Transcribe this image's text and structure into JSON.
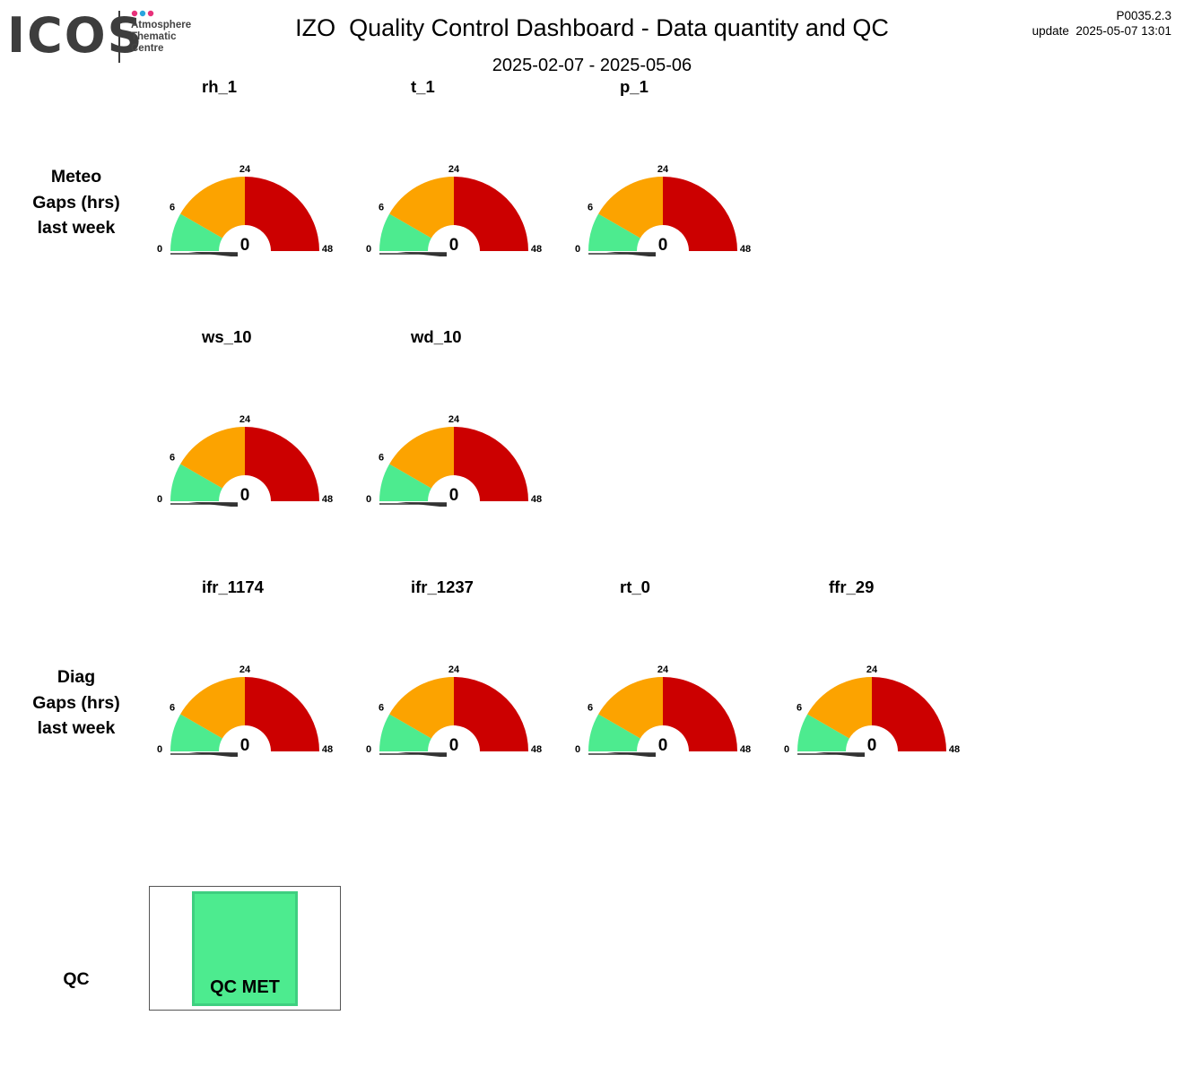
{
  "header": {
    "logo_text": "ICOS",
    "logo_sub": [
      "Atmosphere",
      "Thematic",
      "Centre"
    ],
    "logo_dot_colors": [
      "#e8317a",
      "#2aa6de",
      "#e8317a"
    ],
    "title": "IZO  Quality Control Dashboard - Data quantity and QC",
    "period": "2025-02-07 - 2025-05-06",
    "version": "P0035.2.3",
    "update": "update  2025-05-07 13:01"
  },
  "rows": {
    "meteo_label": [
      "Meteo",
      "Gaps (hrs)",
      "last week"
    ],
    "diag_label": [
      "Diag",
      "Gaps (hrs)",
      "last week"
    ],
    "qc_label": "QC"
  },
  "colors": {
    "green": "#4deb8f",
    "orange": "#fca300",
    "red": "#cc0000",
    "needle": "#333333",
    "qc_fill": "#4deb8f"
  },
  "qc": {
    "status": "QC MET"
  },
  "chart_data": [
    {
      "type": "gauge",
      "title": "rh_1",
      "value": 0,
      "value_label": "0",
      "range": [
        0,
        48
      ],
      "ticks": [
        "0",
        "6",
        "24",
        "48"
      ],
      "bands": [
        {
          "from": 0,
          "to": 6,
          "color": "green"
        },
        {
          "from": 6,
          "to": 24,
          "color": "orange"
        },
        {
          "from": 24,
          "to": 48,
          "color": "red"
        }
      ]
    },
    {
      "type": "gauge",
      "title": "t_1",
      "value": 0,
      "value_label": "0",
      "range": [
        0,
        48
      ],
      "ticks": [
        "0",
        "6",
        "24",
        "48"
      ],
      "bands": [
        {
          "from": 0,
          "to": 6,
          "color": "green"
        },
        {
          "from": 6,
          "to": 24,
          "color": "orange"
        },
        {
          "from": 24,
          "to": 48,
          "color": "red"
        }
      ]
    },
    {
      "type": "gauge",
      "title": "p_1",
      "value": 0,
      "value_label": "0",
      "range": [
        0,
        48
      ],
      "ticks": [
        "0",
        "6",
        "24",
        "48"
      ],
      "bands": [
        {
          "from": 0,
          "to": 6,
          "color": "green"
        },
        {
          "from": 6,
          "to": 24,
          "color": "orange"
        },
        {
          "from": 24,
          "to": 48,
          "color": "red"
        }
      ]
    },
    {
      "type": "gauge",
      "title": "ws_10",
      "value": 0,
      "value_label": "0",
      "range": [
        0,
        48
      ],
      "ticks": [
        "0",
        "6",
        "24",
        "48"
      ],
      "bands": [
        {
          "from": 0,
          "to": 6,
          "color": "green"
        },
        {
          "from": 6,
          "to": 24,
          "color": "orange"
        },
        {
          "from": 24,
          "to": 48,
          "color": "red"
        }
      ]
    },
    {
      "type": "gauge",
      "title": "wd_10",
      "value": 0,
      "value_label": "0",
      "range": [
        0,
        48
      ],
      "ticks": [
        "0",
        "6",
        "24",
        "48"
      ],
      "bands": [
        {
          "from": 0,
          "to": 6,
          "color": "green"
        },
        {
          "from": 6,
          "to": 24,
          "color": "orange"
        },
        {
          "from": 24,
          "to": 48,
          "color": "red"
        }
      ]
    },
    {
      "type": "gauge",
      "title": "ifr_1174",
      "value": 0,
      "value_label": "0",
      "range": [
        0,
        48
      ],
      "ticks": [
        "0",
        "6",
        "24",
        "48"
      ],
      "bands": [
        {
          "from": 0,
          "to": 6,
          "color": "green"
        },
        {
          "from": 6,
          "to": 24,
          "color": "orange"
        },
        {
          "from": 24,
          "to": 48,
          "color": "red"
        }
      ]
    },
    {
      "type": "gauge",
      "title": "ifr_1237",
      "value": 0,
      "value_label": "0",
      "range": [
        0,
        48
      ],
      "ticks": [
        "0",
        "6",
        "24",
        "48"
      ],
      "bands": [
        {
          "from": 0,
          "to": 6,
          "color": "green"
        },
        {
          "from": 6,
          "to": 24,
          "color": "orange"
        },
        {
          "from": 24,
          "to": 48,
          "color": "red"
        }
      ]
    },
    {
      "type": "gauge",
      "title": "rt_0",
      "value": 0,
      "value_label": "0",
      "range": [
        0,
        48
      ],
      "ticks": [
        "0",
        "6",
        "24",
        "48"
      ],
      "bands": [
        {
          "from": 0,
          "to": 6,
          "color": "green"
        },
        {
          "from": 6,
          "to": 24,
          "color": "orange"
        },
        {
          "from": 24,
          "to": 48,
          "color": "red"
        }
      ]
    },
    {
      "type": "gauge",
      "title": "ffr_29",
      "value": 0,
      "value_label": "0",
      "range": [
        0,
        48
      ],
      "ticks": [
        "0",
        "6",
        "24",
        "48"
      ],
      "bands": [
        {
          "from": 0,
          "to": 6,
          "color": "green"
        },
        {
          "from": 6,
          "to": 24,
          "color": "orange"
        },
        {
          "from": 24,
          "to": 48,
          "color": "red"
        }
      ]
    }
  ]
}
